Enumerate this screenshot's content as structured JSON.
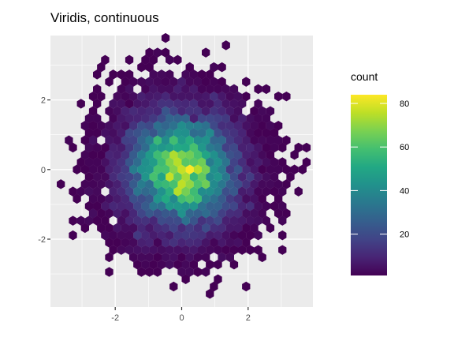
{
  "chart_data": {
    "type": "hexbin",
    "title": "Viridis, continuous",
    "xlabel": "",
    "ylabel": "",
    "xlim": [
      -3.95,
      3.95
    ],
    "ylim": [
      -3.95,
      3.85
    ],
    "x_ticks": [
      -2,
      0,
      2
    ],
    "x_tick_labels": [
      "-2",
      "0",
      "2"
    ],
    "y_ticks": [
      -2,
      0,
      2
    ],
    "y_tick_labels": [
      "-2",
      "0",
      "2"
    ],
    "grid": true,
    "panel_background": "#ebebeb",
    "grid_color": "#ffffff",
    "hex_size": 0.14,
    "distribution": "standard bivariate normal (x, y)",
    "max_count": 84,
    "colormap": "viridis",
    "legend": {
      "title": "count",
      "position": "right",
      "range": [
        1,
        84
      ],
      "ticks": [
        20,
        40,
        60,
        80
      ],
      "tick_labels": [
        "20",
        "40",
        "60",
        "80"
      ]
    }
  }
}
